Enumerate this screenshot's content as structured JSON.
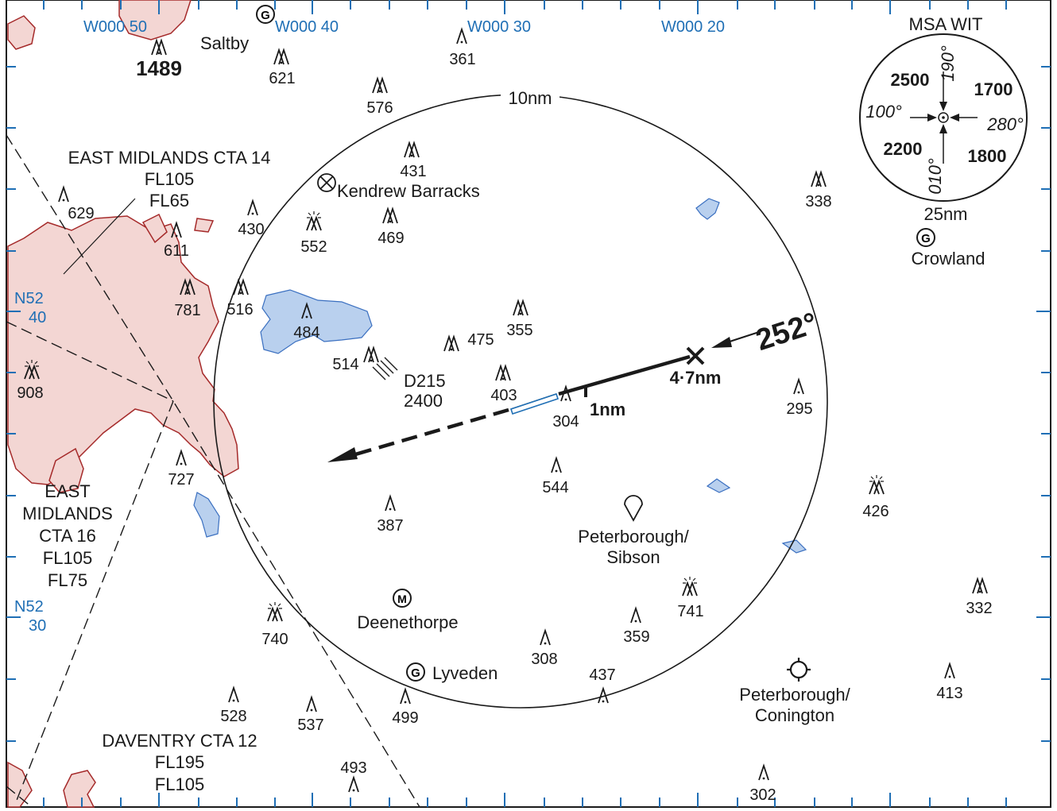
{
  "colors": {
    "terrain_fill": "#f3d6d3",
    "terrain_stroke": "#a52a2a",
    "water_fill": "#b9d0ee",
    "water_stroke": "#3a6fc0",
    "grid_blue": "#1f6fb5",
    "ink": "#1a1a1a"
  },
  "grid": {
    "longitudes": [
      "W000 50",
      "W000 40",
      "W000 30",
      "W000 20"
    ],
    "latitudes": [
      {
        "deg": "N52",
        "min": "40"
      },
      {
        "deg": "N52",
        "min": "30"
      }
    ]
  },
  "range_ring": {
    "label": "10nm"
  },
  "airspace": [
    {
      "lines": [
        "EAST MIDLANDS CTA 14",
        "FL105",
        "FL65"
      ]
    },
    {
      "lines": [
        "EAST",
        "MIDLANDS",
        "CTA 16",
        "FL105",
        "FL75"
      ]
    },
    {
      "lines": [
        "DAVENTRY CTA 12",
        "FL195",
        "FL105"
      ]
    }
  ],
  "danger_area": {
    "name": "D215",
    "height": "2400"
  },
  "places": {
    "saltby": "Saltby",
    "kendrew": "Kendrew Barracks",
    "crowland": "Crowland",
    "deenethorpe": "Deenethorpe",
    "lyveden": "Lyveden",
    "sibson_1": "Peterborough/",
    "sibson_2": "Sibson",
    "conington_1": "Peterborough/",
    "conington_2": "Conington",
    "glider_symbol": "G",
    "microlight_symbol": "M"
  },
  "approach": {
    "track": "252°",
    "distance_fix": "4·7nm",
    "distance_1nm": "1nm"
  },
  "msa": {
    "title": "MSA WIT",
    "radius_label": "25nm",
    "sectors": {
      "nw": "2500",
      "ne": "1700",
      "sw": "2200",
      "se": "1800"
    },
    "bearings": {
      "north": "190°",
      "west": "100°",
      "east": "280°",
      "south": "010°"
    }
  },
  "spot_height": "1489",
  "obstacles": [
    {
      "label": "621",
      "type": "group"
    },
    {
      "label": "361",
      "type": "single"
    },
    {
      "label": "576",
      "type": "group"
    },
    {
      "label": "431",
      "type": "group"
    },
    {
      "label": "629",
      "type": "single"
    },
    {
      "label": "430",
      "type": "single"
    },
    {
      "label": "552",
      "type": "group-lit"
    },
    {
      "label": "469",
      "type": "group"
    },
    {
      "label": "611",
      "type": "single"
    },
    {
      "label": "781",
      "type": "group"
    },
    {
      "label": "516",
      "type": "group"
    },
    {
      "label": "484",
      "type": "single"
    },
    {
      "label": "355",
      "type": "group"
    },
    {
      "label": "475",
      "type": "group"
    },
    {
      "label": "514",
      "type": "group"
    },
    {
      "label": "403",
      "type": "group"
    },
    {
      "label": "304",
      "type": "single"
    },
    {
      "label": "908",
      "type": "group-lit"
    },
    {
      "label": "727",
      "type": "single"
    },
    {
      "label": "544",
      "type": "single"
    },
    {
      "label": "387",
      "type": "single"
    },
    {
      "label": "295",
      "type": "single"
    },
    {
      "label": "338",
      "type": "group"
    },
    {
      "label": "426",
      "type": "group-lit"
    },
    {
      "label": "741",
      "type": "group-lit"
    },
    {
      "label": "332",
      "type": "group"
    },
    {
      "label": "740",
      "type": "group-lit"
    },
    {
      "label": "359",
      "type": "single"
    },
    {
      "label": "308",
      "type": "single"
    },
    {
      "label": "437",
      "type": "single"
    },
    {
      "label": "413",
      "type": "single"
    },
    {
      "label": "528",
      "type": "single"
    },
    {
      "label": "537",
      "type": "single"
    },
    {
      "label": "499",
      "type": "single"
    },
    {
      "label": "493",
      "type": "single"
    },
    {
      "label": "302",
      "type": "single"
    }
  ]
}
